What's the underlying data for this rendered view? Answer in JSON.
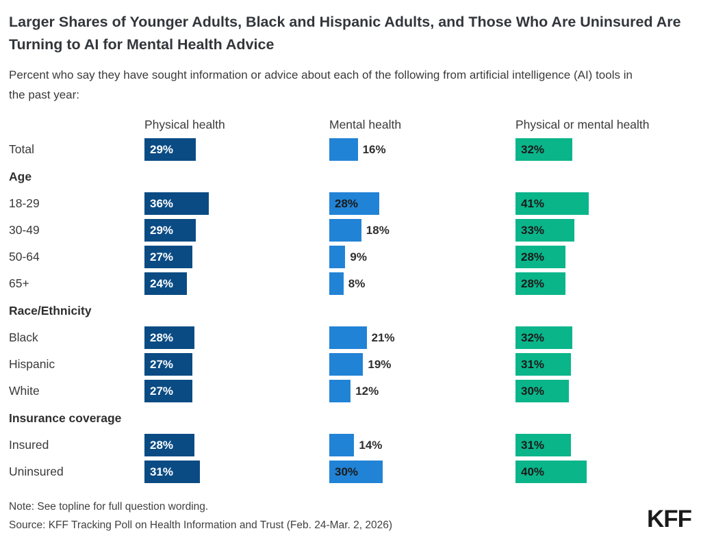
{
  "title": "Larger Shares of Younger Adults, Black and Hispanic Adults, and Those Who Are Uninsured Are Turning to AI for Mental Health Advice",
  "subtitle": "Percent who say they have sought information or advice about each of the following from artificial intelligence (AI) tools in the past year:",
  "columns": [
    {
      "label": "Physical health",
      "color": "#0A4B84",
      "inside_text_color": "#ffffff"
    },
    {
      "label": "Mental health",
      "color": "#2183D6",
      "inside_text_color": "#1a1a1a"
    },
    {
      "label": "Physical or mental health",
      "color": "#0AB58A",
      "inside_text_color": "#1a1a1a"
    }
  ],
  "rows": [
    {
      "type": "bar",
      "label": "Total",
      "values": [
        29,
        16,
        32
      ]
    },
    {
      "type": "group",
      "label": "Age"
    },
    {
      "type": "bar",
      "label": "18-29",
      "values": [
        36,
        28,
        41
      ]
    },
    {
      "type": "bar",
      "label": "30-49",
      "values": [
        29,
        18,
        33
      ]
    },
    {
      "type": "bar",
      "label": "50-64",
      "values": [
        27,
        9,
        28
      ]
    },
    {
      "type": "bar",
      "label": "65+",
      "values": [
        24,
        8,
        28
      ]
    },
    {
      "type": "group",
      "label": "Race/Ethnicity"
    },
    {
      "type": "bar",
      "label": "Black",
      "values": [
        28,
        21,
        32
      ]
    },
    {
      "type": "bar",
      "label": "Hispanic",
      "values": [
        27,
        19,
        31
      ]
    },
    {
      "type": "bar",
      "label": "White",
      "values": [
        27,
        12,
        30
      ]
    },
    {
      "type": "group",
      "label": "Insurance coverage"
    },
    {
      "type": "bar",
      "label": "Insured",
      "values": [
        28,
        14,
        31
      ]
    },
    {
      "type": "bar",
      "label": "Uninsured",
      "values": [
        31,
        30,
        40
      ]
    }
  ],
  "footer": {
    "note": "Note: See topline for full question wording.",
    "source": "Source: KFF Tracking Poll on Health Information and Trust (Feb. 24-Mar. 2, 2026)",
    "logo": "KFF"
  },
  "chart_data": {
    "type": "bar",
    "orientation": "horizontal",
    "title": "Larger Shares of Younger Adults, Black and Hispanic Adults, and Those Who Are Uninsured Are Turning to AI for Mental Health Advice",
    "subtitle": "Percent who say they have sought information or advice about each of the following from artificial intelligence (AI) tools in the past year:",
    "unit": "%",
    "xlim": [
      0,
      100
    ],
    "grid": false,
    "legend_position": "column-headers-top",
    "categories": [
      "Total",
      "18-29",
      "30-49",
      "50-64",
      "65+",
      "Black",
      "Hispanic",
      "White",
      "Insured",
      "Uninsured"
    ],
    "category_groups": [
      {
        "name": "Age",
        "categories": [
          "18-29",
          "30-49",
          "50-64",
          "65+"
        ]
      },
      {
        "name": "Race/Ethnicity",
        "categories": [
          "Black",
          "Hispanic",
          "White"
        ]
      },
      {
        "name": "Insurance coverage",
        "categories": [
          "Insured",
          "Uninsured"
        ]
      }
    ],
    "series": [
      {
        "name": "Physical health",
        "color": "#0A4B84",
        "values": [
          29,
          36,
          29,
          27,
          24,
          28,
          27,
          27,
          28,
          31
        ]
      },
      {
        "name": "Mental health",
        "color": "#2183D6",
        "values": [
          16,
          28,
          18,
          9,
          8,
          21,
          19,
          12,
          14,
          30
        ]
      },
      {
        "name": "Physical or mental health",
        "color": "#0AB58A",
        "values": [
          32,
          41,
          33,
          28,
          28,
          32,
          31,
          30,
          31,
          40
        ]
      }
    ]
  }
}
